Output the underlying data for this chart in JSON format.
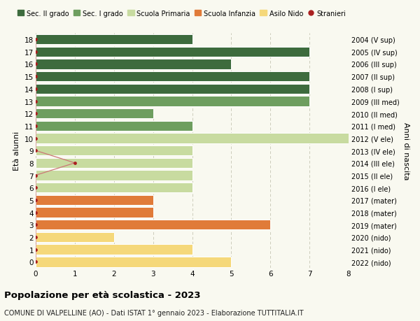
{
  "ages": [
    0,
    1,
    2,
    3,
    4,
    5,
    6,
    7,
    8,
    9,
    10,
    11,
    12,
    13,
    14,
    15,
    16,
    17,
    18
  ],
  "right_labels": [
    "2022 (nido)",
    "2021 (nido)",
    "2020 (nido)",
    "2019 (mater)",
    "2018 (mater)",
    "2017 (mater)",
    "2016 (I ele)",
    "2015 (II ele)",
    "2014 (III ele)",
    "2013 (IV ele)",
    "2012 (V ele)",
    "2011 (I med)",
    "2010 (II med)",
    "2009 (III med)",
    "2008 (I sup)",
    "2007 (II sup)",
    "2006 (III sup)",
    "2005 (IV sup)",
    "2004 (V sup)"
  ],
  "bar_values": [
    5,
    4,
    2,
    6,
    3,
    3,
    4,
    4,
    4,
    4,
    8,
    4,
    3,
    7,
    7,
    7,
    5,
    7,
    4
  ],
  "bar_colors": [
    "#f5d87a",
    "#f5d87a",
    "#f5d87a",
    "#e07b39",
    "#e07b39",
    "#e07b39",
    "#c8dba0",
    "#c8dba0",
    "#c8dba0",
    "#c8dba0",
    "#c8dba0",
    "#6e9e5f",
    "#6e9e5f",
    "#6e9e5f",
    "#3d6b3d",
    "#3d6b3d",
    "#3d6b3d",
    "#3d6b3d",
    "#3d6b3d"
  ],
  "stranieri_values": [
    0,
    0,
    0,
    0,
    0,
    0,
    0,
    0,
    1,
    0,
    0,
    0,
    0,
    0,
    0,
    0,
    0,
    0,
    0
  ],
  "legend_labels": [
    "Sec. II grado",
    "Sec. I grado",
    "Scuola Primaria",
    "Scuola Infanzia",
    "Asilo Nido",
    "Stranieri"
  ],
  "legend_colors": [
    "#3d6b3d",
    "#6e9e5f",
    "#c8dba0",
    "#e07b39",
    "#f5d87a",
    "#aa2020"
  ],
  "ylabel": "Età alunni",
  "right_ylabel": "Anni di nascita",
  "title": "Popolazione per età scolastica - 2023",
  "subtitle": "COMUNE DI VALPELLINE (AO) - Dati ISTAT 1° gennaio 2023 - Elaborazione TUTTITALIA.IT",
  "xlim": [
    0,
    8
  ],
  "background_color": "#f9f9f0",
  "grid_color": "#ccccbb",
  "bar_edge_color": "#ffffff",
  "stranieri_color": "#aa2020",
  "stranieri_line_color": "#cc7777"
}
